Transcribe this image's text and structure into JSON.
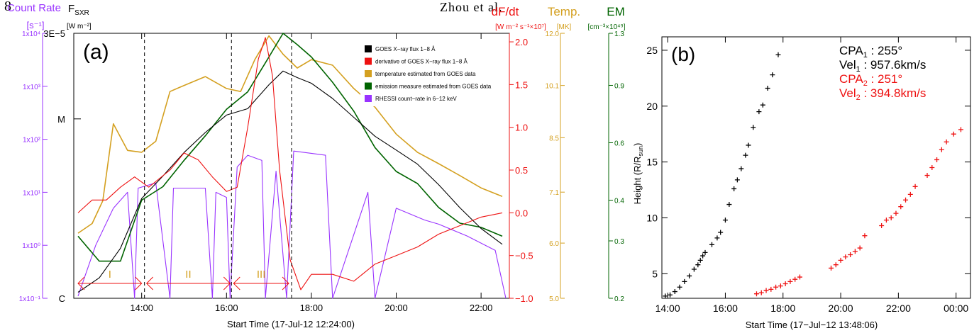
{
  "header": {
    "page_number": "8",
    "running_head": "Zhou et al."
  },
  "colors": {
    "black": "#000000",
    "red": "#ee1111",
    "gold": "#d4a020",
    "green": "#006400",
    "purple": "#9933ff"
  },
  "panel_a": {
    "label": "(a)",
    "xlabel": "Start Time (17-Jul-12 12:24:00)",
    "x_ticks": [
      "14:00",
      "16:00",
      "18:00",
      "20:00",
      "22:00"
    ],
    "axes": {
      "count_rate": {
        "title": "Count Rate",
        "unit": "[s⁻¹]",
        "ticks": [
          "1x10⁻¹",
          "1x10⁰",
          "1x10¹",
          "1x10²",
          "1x10³",
          "1x10⁴"
        ]
      },
      "fsxr": {
        "title": "F",
        "title_sub": "SXR",
        "unit": "[W m⁻²]",
        "ticks": [
          "C",
          "M",
          "3E−5"
        ]
      },
      "dfdt": {
        "title": "dF/dt",
        "unit": "[W m⁻² s⁻¹×10⁷]",
        "ticks": [
          "−1.0",
          "−0.5",
          "0.0",
          "0.5",
          "1.0",
          "1.5",
          "2.0"
        ]
      },
      "temp": {
        "title": "Temp.",
        "unit": "[MK]",
        "ticks": [
          "5.0",
          "6.0",
          "7.1",
          "8.5",
          "10.1",
          "12.0"
        ]
      },
      "em": {
        "title": "EM",
        "unit": "[cm⁻³×10⁴⁹]",
        "ticks": [
          "0.2",
          "0.3",
          "0.4",
          "0.6",
          "0.9",
          "1.3"
        ]
      }
    },
    "legend": [
      {
        "label": "GOES X−ray flux 1−8 Å",
        "color": "#000000"
      },
      {
        "label": "derivative of GOES X−ray flux 1−8 Å",
        "color": "#ee1111"
      },
      {
        "label": "temperature estimated from GOES data",
        "color": "#d4a020"
      },
      {
        "label": "emission measure estimated from GOES data",
        "color": "#006400"
      },
      {
        "label": "RHESSI count−rate in 6−12 keV",
        "color": "#9933ff"
      }
    ],
    "phases": [
      "I",
      "II",
      "III"
    ]
  },
  "chart_data": [
    {
      "type": "line",
      "panel": "a",
      "xlabel": "Start Time (17-Jul-12 12:24:00)",
      "xlim": [
        "12:24",
        "22:40"
      ],
      "phase_boundaries": [
        "14:04",
        "16:07",
        "17:32"
      ],
      "phases": [
        {
          "label": "I",
          "start": "12:30",
          "end": "14:00"
        },
        {
          "label": "II",
          "start": "14:07",
          "end": "16:05"
        },
        {
          "label": "III",
          "start": "16:10",
          "end": "17:28"
        }
      ],
      "series": [
        {
          "name": "GOES X−ray flux 1−8 Å",
          "axis": "F_SXR",
          "scale": "log",
          "ylim": [
            1e-06,
            3e-05
          ],
          "points": [
            [
              "12:30",
              1.08e-06
            ],
            [
              "13:00",
              1.3e-06
            ],
            [
              "13:30",
              1.9e-06
            ],
            [
              "14:00",
              3.6e-06
            ],
            [
              "14:30",
              4.8e-06
            ],
            [
              "15:00",
              6.5e-06
            ],
            [
              "15:30",
              8.4e-06
            ],
            [
              "16:00",
              1.05e-05
            ],
            [
              "16:30",
              1.14e-05
            ],
            [
              "17:00",
              1.55e-05
            ],
            [
              "17:20",
              1.85e-05
            ],
            [
              "17:40",
              1.7e-05
            ],
            [
              "18:00",
              1.58e-05
            ],
            [
              "18:30",
              1.3e-05
            ],
            [
              "19:00",
              1.02e-05
            ],
            [
              "19:30",
              8e-06
            ],
            [
              "20:00",
              6.7e-06
            ],
            [
              "20:30",
              5.6e-06
            ],
            [
              "21:00",
              4.3e-06
            ],
            [
              "21:30",
              3.2e-06
            ],
            [
              "22:00",
              2.45e-06
            ],
            [
              "22:30",
              2e-06
            ]
          ]
        },
        {
          "name": "derivative of GOES X−ray flux 1−8 Å",
          "axis": "dF/dt",
          "scale": "linear",
          "ylim": [
            -1.0,
            2.1
          ],
          "points": [
            [
              "12:30",
              0.0
            ],
            [
              "12:50",
              0.15
            ],
            [
              "13:10",
              0.15
            ],
            [
              "13:30",
              0.3
            ],
            [
              "13:50",
              0.42
            ],
            [
              "14:10",
              0.3
            ],
            [
              "14:40",
              0.5
            ],
            [
              "15:00",
              0.7
            ],
            [
              "15:20",
              0.62
            ],
            [
              "15:40",
              0.42
            ],
            [
              "16:00",
              0.25
            ],
            [
              "16:15",
              0.3
            ],
            [
              "16:30",
              1.0
            ],
            [
              "16:45",
              1.8
            ],
            [
              "16:55",
              2.05
            ],
            [
              "17:05",
              1.6
            ],
            [
              "17:15",
              0.5
            ],
            [
              "17:30",
              -0.55
            ],
            [
              "17:45",
              -0.9
            ],
            [
              "18:00",
              -0.72
            ],
            [
              "18:30",
              -0.72
            ],
            [
              "19:00",
              -0.8
            ],
            [
              "19:30",
              -0.6
            ],
            [
              "20:00",
              -0.5
            ],
            [
              "20:30",
              -0.4
            ],
            [
              "21:00",
              -0.25
            ],
            [
              "21:30",
              -0.15
            ],
            [
              "22:00",
              -0.05
            ],
            [
              "22:30",
              0.0
            ]
          ]
        },
        {
          "name": "temperature estimated from GOES data",
          "axis": "Temp.",
          "scale": "log",
          "ylim": [
            5.0,
            12.0
          ],
          "points": [
            [
              "12:30",
              6.2
            ],
            [
              "12:50",
              6.4
            ],
            [
              "13:05",
              6.9
            ],
            [
              "13:20",
              8.9
            ],
            [
              "13:40",
              8.15
            ],
            [
              "14:00",
              8.1
            ],
            [
              "14:20",
              8.4
            ],
            [
              "14:40",
              9.9
            ],
            [
              "15:00",
              10.1
            ],
            [
              "15:30",
              10.4
            ],
            [
              "16:00",
              10.0
            ],
            [
              "16:20",
              9.9
            ],
            [
              "16:40",
              11.0
            ],
            [
              "17:00",
              11.9
            ],
            [
              "17:20",
              11.2
            ],
            [
              "17:40",
              10.7
            ],
            [
              "18:00",
              11.0
            ],
            [
              "18:30",
              10.8
            ],
            [
              "19:00",
              10.0
            ],
            [
              "19:30",
              9.4
            ],
            [
              "20:00",
              8.6
            ],
            [
              "20:30",
              8.1
            ],
            [
              "21:00",
              7.8
            ],
            [
              "21:30",
              7.5
            ],
            [
              "22:00",
              7.2
            ],
            [
              "22:30",
              7.0
            ]
          ]
        },
        {
          "name": "emission measure estimated from GOES data",
          "axis": "EM",
          "scale": "log",
          "ylim": [
            0.2,
            1.3
          ],
          "points": [
            [
              "12:30",
              0.31
            ],
            [
              "13:00",
              0.26
            ],
            [
              "13:30",
              0.26
            ],
            [
              "14:00",
              0.4
            ],
            [
              "14:30",
              0.44
            ],
            [
              "15:00",
              0.53
            ],
            [
              "15:30",
              0.63
            ],
            [
              "16:00",
              0.76
            ],
            [
              "16:30",
              0.86
            ],
            [
              "17:00",
              1.1
            ],
            [
              "17:20",
              1.3
            ],
            [
              "17:40",
              1.2
            ],
            [
              "18:00",
              1.1
            ],
            [
              "18:30",
              0.92
            ],
            [
              "19:00",
              0.75
            ],
            [
              "19:30",
              0.58
            ],
            [
              "20:00",
              0.49
            ],
            [
              "20:30",
              0.45
            ],
            [
              "21:00",
              0.38
            ],
            [
              "21:30",
              0.34
            ],
            [
              "22:00",
              0.33
            ],
            [
              "22:30",
              0.31
            ]
          ]
        },
        {
          "name": "RHESSI count−rate in 6−12 keV",
          "axis": "Count Rate",
          "scale": "log",
          "ylim": [
            0.1,
            10000
          ],
          "points": [
            [
              "12:30",
              0.11
            ],
            [
              "12:55",
              1.0
            ],
            [
              "13:20",
              5.0
            ],
            [
              "13:40",
              10.0
            ],
            [
              "13:50",
              0.1
            ],
            [
              "13:55",
              12.0
            ],
            [
              "14:20",
              15.0
            ],
            [
              "14:40",
              0.1
            ],
            [
              "14:45",
              12.0
            ],
            [
              "15:30",
              12.0
            ],
            [
              "15:40",
              0.1
            ],
            [
              "15:45",
              10.0
            ],
            [
              "16:00",
              8.0
            ],
            [
              "16:05",
              0.1
            ],
            [
              "16:15",
              30.0
            ],
            [
              "16:30",
              50.0
            ],
            [
              "16:50",
              40.0
            ],
            [
              "16:55",
              0.1
            ],
            [
              "17:10",
              25.0
            ],
            [
              "17:25",
              0.1
            ],
            [
              "17:35",
              60.0
            ],
            [
              "18:20",
              50.0
            ],
            [
              "18:30",
              0.1
            ],
            [
              "19:20",
              10.0
            ],
            [
              "19:30",
              0.1
            ],
            [
              "20:00",
              5.0
            ],
            [
              "20:40",
              3.0
            ],
            [
              "21:00",
              2.5
            ],
            [
              "21:40",
              1.5
            ],
            [
              "22:20",
              0.8
            ],
            [
              "22:35",
              0.1
            ]
          ]
        }
      ]
    },
    {
      "type": "scatter",
      "panel": "b",
      "xlabel": "Start Time (17−Jul−12 13:48:06)",
      "ylabel": "Height (R/R_sun)",
      "xlim": [
        "13:48",
        "00:30"
      ],
      "ylim": [
        2.8,
        26.2
      ],
      "x_ticks": [
        "14:00",
        "16:00",
        "18:00",
        "20:00",
        "22:00",
        "00:00"
      ],
      "y_ticks": [
        5,
        10,
        15,
        20,
        25
      ],
      "annotations": [
        {
          "label": "CPA",
          "sub": "1",
          "value": ": 255°",
          "color": "#000000"
        },
        {
          "label": "Vel",
          "sub": "1",
          "value": ": 957.6km/s",
          "color": "#000000"
        },
        {
          "label": "CPA",
          "sub": "2",
          "value": ": 251°",
          "color": "#ee1111"
        },
        {
          "label": "Vel",
          "sub": "2",
          "value": ": 394.8km/s",
          "color": "#ee1111"
        }
      ],
      "series": [
        {
          "name": "CPA1",
          "color": "#000000",
          "points": [
            [
              "13:55",
              3.0
            ],
            [
              "14:05",
              3.1
            ],
            [
              "14:15",
              3.4
            ],
            [
              "14:25",
              3.8
            ],
            [
              "14:35",
              4.3
            ],
            [
              "14:45",
              4.8
            ],
            [
              "14:55",
              5.4
            ],
            [
              "15:03",
              5.8
            ],
            [
              "15:08",
              6.2
            ],
            [
              "15:13",
              6.6
            ],
            [
              "15:18",
              6.9
            ],
            [
              "15:32",
              7.6
            ],
            [
              "15:43",
              8.2
            ],
            [
              "15:50",
              8.7
            ],
            [
              "16:00",
              9.8
            ],
            [
              "16:08",
              11.2
            ],
            [
              "16:18",
              12.6
            ],
            [
              "16:25",
              13.4
            ],
            [
              "16:33",
              14.4
            ],
            [
              "16:42",
              15.6
            ],
            [
              "16:48",
              16.5
            ],
            [
              "16:58",
              18.1
            ],
            [
              "17:10",
              19.5
            ],
            [
              "17:18",
              20.1
            ],
            [
              "17:28",
              21.6
            ],
            [
              "17:38",
              22.8
            ],
            [
              "17:50",
              24.6
            ]
          ]
        },
        {
          "name": "CPA2",
          "color": "#ee1111",
          "points": [
            [
              "17:05",
              3.2
            ],
            [
              "17:15",
              3.3
            ],
            [
              "17:25",
              3.5
            ],
            [
              "17:35",
              3.6
            ],
            [
              "17:45",
              3.8
            ],
            [
              "17:55",
              3.9
            ],
            [
              "18:05",
              4.1
            ],
            [
              "18:15",
              4.3
            ],
            [
              "18:25",
              4.5
            ],
            [
              "18:35",
              4.7
            ],
            [
              "19:40",
              5.5
            ],
            [
              "19:50",
              5.8
            ],
            [
              "20:00",
              6.2
            ],
            [
              "20:10",
              6.5
            ],
            [
              "20:20",
              6.7
            ],
            [
              "20:30",
              7.0
            ],
            [
              "20:40",
              7.3
            ],
            [
              "20:50",
              8.4
            ],
            [
              "21:25",
              9.3
            ],
            [
              "21:35",
              9.8
            ],
            [
              "21:45",
              10.0
            ],
            [
              "21:55",
              10.4
            ],
            [
              "22:05",
              11.0
            ],
            [
              "22:15",
              11.6
            ],
            [
              "22:25",
              12.1
            ],
            [
              "22:35",
              12.8
            ],
            [
              "23:00",
              13.8
            ],
            [
              "23:10",
              14.5
            ],
            [
              "23:20",
              15.2
            ],
            [
              "23:30",
              16.1
            ],
            [
              "23:40",
              16.8
            ],
            [
              "23:55",
              17.5
            ],
            [
              "00:10",
              17.9
            ]
          ]
        }
      ]
    }
  ]
}
